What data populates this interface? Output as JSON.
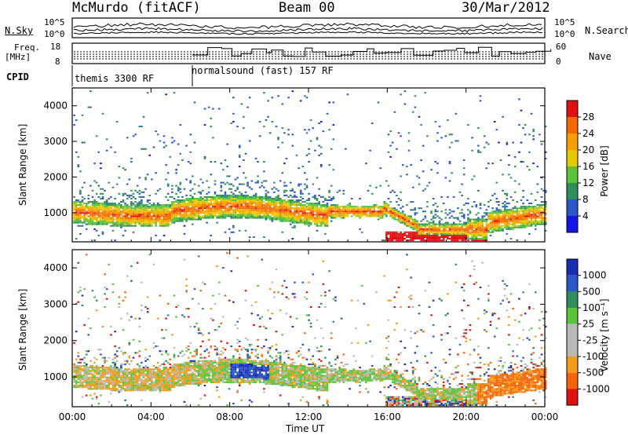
{
  "header": {
    "station": "McMurdo (fitACF)",
    "beam": "Beam 00",
    "date": "30/Mar/2012"
  },
  "sidepanel": {
    "nsky_label": "N.Sky",
    "nsky_ticks": [
      "10^5",
      "10^0"
    ],
    "nsearch_label": "N.Search",
    "nsearch_ticks": [
      "10^5",
      "10^0"
    ],
    "freq_label": "Freq.",
    "freq_unit": "[MHz]",
    "freq_ticks": [
      "18",
      "8"
    ],
    "nave_label": "Nave",
    "nave_ticks": [
      "60",
      "0"
    ],
    "cpid_label": "CPID"
  },
  "cpid_segments": [
    {
      "label": "themis 3300 RF",
      "start_hour": 0,
      "end_hour": 6.1
    },
    {
      "label": "normalsound (fast) 157 RF",
      "start_hour": 6.1,
      "end_hour": 24
    }
  ],
  "colors": {
    "power": [
      "#1414e6",
      "#2a56c8",
      "#2f8f5a",
      "#57c43a",
      "#e8c800",
      "#f5a000",
      "#f56a00",
      "#e01010"
    ],
    "velocity": [
      "#e01010",
      "#f5630a",
      "#f59b1a",
      "#b9b9b9",
      "#b9b9b9",
      "#57c43a",
      "#2f8f5a",
      "#2a56c8",
      "#1b2db5"
    ]
  },
  "chart_data": [
    {
      "type": "heatmap",
      "panel": "power",
      "ylabel": "Slant Range [km]",
      "xlabel": "Time UT",
      "x_ticks": [
        "00:00",
        "04:00",
        "08:00",
        "12:00",
        "16:00",
        "20:00",
        "00:00"
      ],
      "x_range_hours": [
        0,
        24
      ],
      "y_ticks": [
        1000,
        2000,
        3000,
        4000
      ],
      "y_range_km": [
        180,
        4500
      ],
      "colorbar_title": "Power [dB]",
      "colorbar_ticks": [
        "4",
        "8",
        "12",
        "16",
        "20",
        "24",
        "28"
      ],
      "colorbar_range": [
        0,
        32
      ]
    },
    {
      "type": "heatmap",
      "panel": "velocity",
      "ylabel": "Slant Range [km]",
      "xlabel": "Time UT",
      "x_ticks": [
        "00:00",
        "04:00",
        "08:00",
        "12:00",
        "16:00",
        "20:00",
        "00:00"
      ],
      "x_range_hours": [
        0,
        24
      ],
      "y_ticks": [
        1000,
        2000,
        3000,
        4000
      ],
      "y_range_km": [
        180,
        4500
      ],
      "colorbar_title": "Velocity [m s⁻¹]",
      "colorbar_ticks": [
        "1000",
        "500",
        "100",
        "25",
        "-25",
        "-100",
        "-500",
        "-1000"
      ]
    }
  ]
}
